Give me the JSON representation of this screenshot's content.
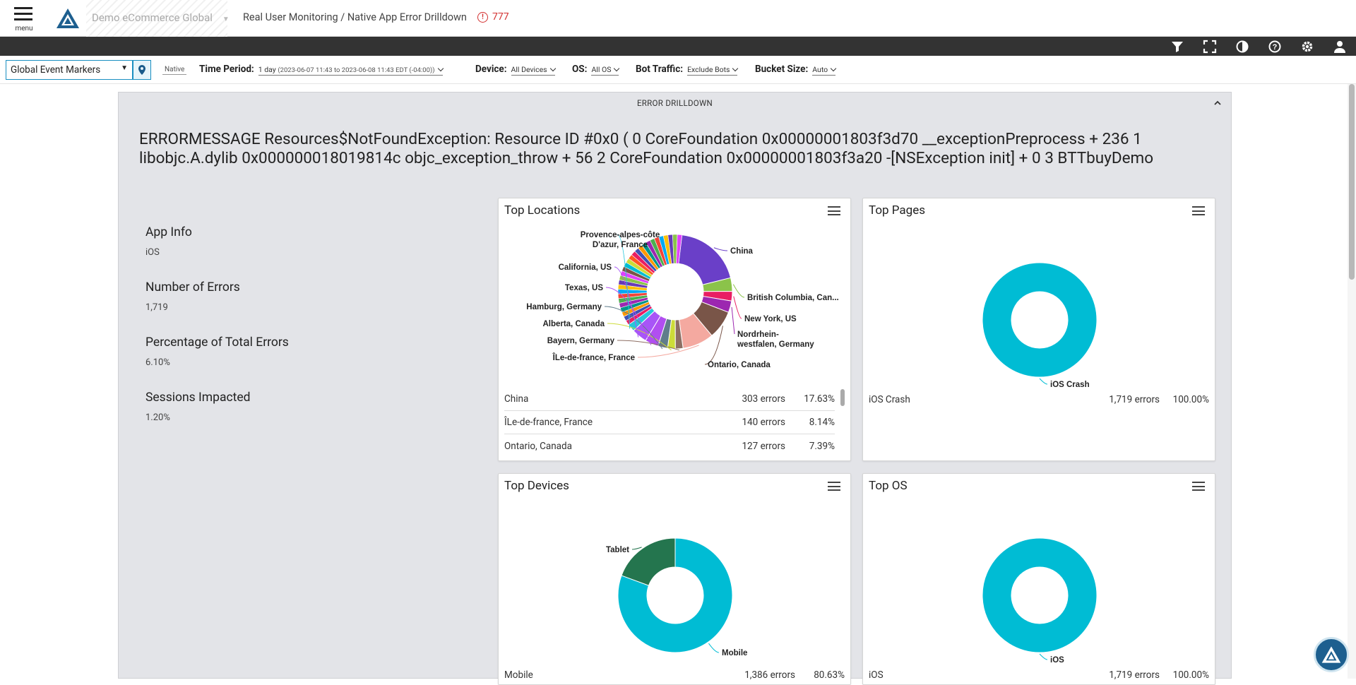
{
  "header": {
    "menu_label": "menu",
    "app_name": "Demo eCommerce Global",
    "breadcrumb": "Real User Monitoring / Native App Error Drilldown",
    "alert_count": "777"
  },
  "filters": {
    "event_markers": "Global Event Markers",
    "native_tag": "Native",
    "time_period_label": "Time Period:",
    "time_period_value": "1 day",
    "time_period_range": "(2023-06-07 11:43 to 2023-06-08 11:43 EDT (-04:00))",
    "device_label": "Device:",
    "device_value": "All Devices",
    "os_label": "OS:",
    "os_value": "All OS",
    "bot_label": "Bot Traffic:",
    "bot_value": "Exclude Bots",
    "bucket_label": "Bucket Size:",
    "bucket_value": "Auto"
  },
  "panel": {
    "title": "ERROR DRILLDOWN",
    "error_message": "ERRORMESSAGE Resources$NotFoundException: Resource ID #0x0 ( 0 CoreFoundation 0x00000001803f3d70 __exceptionPreprocess + 236 1 libobjc.A.dylib 0x000000018019814c objc_exception_throw + 56 2 CoreFoundation 0x00000001803f3a20 -[NSException init] + 0 3 BTTbuyDemo",
    "info": [
      {
        "label": "App Info",
        "value": "iOS"
      },
      {
        "label": "Number of Errors",
        "value": "1,719"
      },
      {
        "label": "Percentage of Total Errors",
        "value": "6.10%"
      },
      {
        "label": "Sessions Impacted",
        "value": "1.20%"
      }
    ]
  },
  "cards": {
    "locations": {
      "title": "Top Locations",
      "rows": [
        {
          "name": "China",
          "count": "303 errors",
          "pct": "17.63%"
        },
        {
          "name": "ÎLe-de-france, France",
          "count": "140 errors",
          "pct": "8.14%"
        },
        {
          "name": "Ontario, Canada",
          "count": "127 errors",
          "pct": "7.39%"
        }
      ]
    },
    "pages": {
      "title": "Top Pages",
      "rows": [
        {
          "name": "iOS Crash",
          "count": "1,719 errors",
          "pct": "100.00%"
        }
      ]
    },
    "devices": {
      "title": "Top Devices",
      "rows": [
        {
          "name": "Mobile",
          "count": "1,386 errors",
          "pct": "80.63%"
        }
      ]
    },
    "os": {
      "title": "Top OS",
      "rows": [
        {
          "name": "iOS",
          "count": "1,719 errors",
          "pct": "100.00%"
        }
      ]
    }
  },
  "chart_data": [
    {
      "type": "pie",
      "title": "Top Locations",
      "categories": [
        "China",
        "British Columbia, Can...",
        "New York, US",
        "Nordrhein-westfalen, Germany",
        "Ontario, Canada",
        "ÎLe-de-france, France",
        "Bayern, Germany",
        "Alberta, Canada",
        "Hamburg, Germany",
        "Texas, US",
        "California, US",
        "Provence-alpes-côte D'azur, France"
      ],
      "values": [
        17.63,
        3.5,
        2.5,
        3.0,
        7.39,
        8.14,
        2.0,
        2.0,
        2.5,
        3.5,
        4.0,
        2.0
      ],
      "colors": [
        "#6a3fc8",
        "#8bc34a",
        "#e91e63",
        "#9c27b0",
        "#795548",
        "#f4a9a0",
        "#8d6e63",
        "#cddc39",
        "#607d8b",
        "#b14ef0",
        "#a855f7",
        "#26c6da"
      ],
      "other_share": 33.74
    },
    {
      "type": "pie",
      "title": "Top Pages",
      "categories": [
        "iOS Crash"
      ],
      "values": [
        100.0
      ],
      "colors": [
        "#00bcd4"
      ]
    },
    {
      "type": "pie",
      "title": "Top Devices",
      "categories": [
        "Mobile",
        "Tablet"
      ],
      "values": [
        80.63,
        19.37
      ],
      "colors": [
        "#00bcd4",
        "#24754e"
      ]
    },
    {
      "type": "pie",
      "title": "Top OS",
      "categories": [
        "iOS"
      ],
      "values": [
        100.0
      ],
      "colors": [
        "#00bcd4"
      ]
    }
  ]
}
